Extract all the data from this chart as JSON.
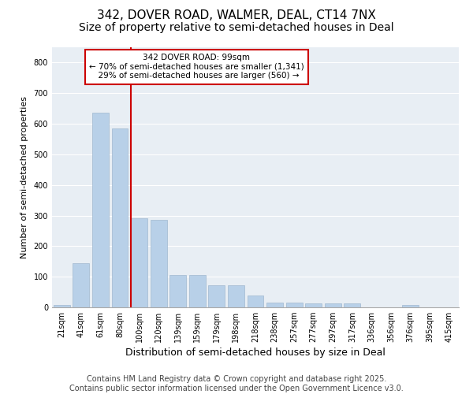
{
  "title": "342, DOVER ROAD, WALMER, DEAL, CT14 7NX",
  "subtitle": "Size of property relative to semi-detached houses in Deal",
  "xlabel": "Distribution of semi-detached houses by size in Deal",
  "ylabel": "Number of semi-detached properties",
  "categories": [
    "21sqm",
    "41sqm",
    "61sqm",
    "80sqm",
    "100sqm",
    "120sqm",
    "139sqm",
    "159sqm",
    "179sqm",
    "198sqm",
    "218sqm",
    "238sqm",
    "257sqm",
    "277sqm",
    "297sqm",
    "317sqm",
    "336sqm",
    "356sqm",
    "376sqm",
    "395sqm",
    "415sqm"
  ],
  "values": [
    8,
    143,
    635,
    585,
    290,
    285,
    105,
    105,
    72,
    72,
    38,
    15,
    15,
    12,
    12,
    12,
    0,
    0,
    7,
    0,
    0
  ],
  "bar_color": "#b8d0e8",
  "bar_edge_color": "#a0b8d0",
  "property_label": "342 DOVER ROAD: 99sqm",
  "pct_smaller": 70,
  "count_smaller": 1341,
  "pct_larger": 29,
  "count_larger": 560,
  "vline_color": "#cc0000",
  "vline_position": 3.575,
  "annotation_box_color": "#cc0000",
  "ylim": [
    0,
    850
  ],
  "yticks": [
    0,
    100,
    200,
    300,
    400,
    500,
    600,
    700,
    800
  ],
  "background_color": "#e8eef4",
  "footer_line1": "Contains HM Land Registry data © Crown copyright and database right 2025.",
  "footer_line2": "Contains public sector information licensed under the Open Government Licence v3.0.",
  "title_fontsize": 11,
  "subtitle_fontsize": 10,
  "xlabel_fontsize": 9,
  "ylabel_fontsize": 8,
  "tick_fontsize": 7,
  "footer_fontsize": 7
}
